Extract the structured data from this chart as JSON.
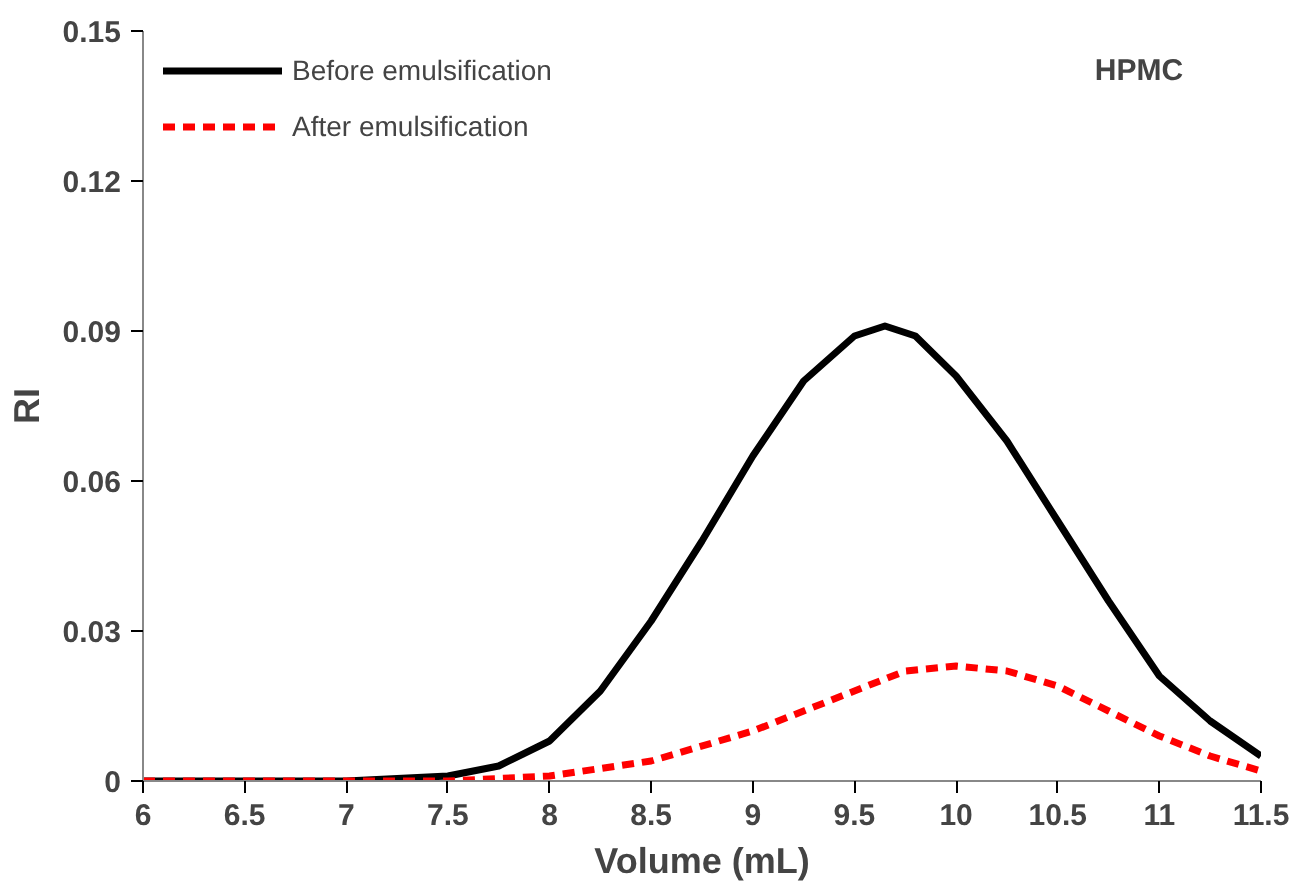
{
  "chart_data": {
    "type": "line",
    "xlabel": "Volume (mL)",
    "ylabel": "RI",
    "annotations": [
      "HPMC"
    ],
    "xlim": [
      6,
      11.5
    ],
    "ylim": [
      0,
      0.15
    ],
    "xticks": [
      6,
      6.5,
      7,
      7.5,
      8,
      8.5,
      9,
      9.5,
      10,
      10.5,
      11,
      11.5
    ],
    "yticks": [
      0,
      0.03,
      0.06,
      0.09,
      0.12,
      0.15
    ],
    "grid": false,
    "legend": "top left",
    "series": [
      {
        "name": "Before emulsification",
        "color": "#000000",
        "line_style": "solid",
        "x": [
          6,
          6.5,
          7,
          7.5,
          7.75,
          8,
          8.25,
          8.5,
          8.75,
          9,
          9.25,
          9.5,
          9.65,
          9.8,
          10,
          10.25,
          10.5,
          10.75,
          11,
          11.25,
          11.5
        ],
        "values": [
          0,
          0,
          0,
          0.001,
          0.003,
          0.008,
          0.018,
          0.032,
          0.048,
          0.065,
          0.08,
          0.089,
          0.091,
          0.089,
          0.081,
          0.068,
          0.052,
          0.036,
          0.021,
          0.012,
          0.005
        ]
      },
      {
        "name": "After emulsification",
        "color": "#ff0000",
        "line_style": "dashed",
        "x": [
          6,
          7,
          7.5,
          8,
          8.5,
          9,
          9.25,
          9.5,
          9.75,
          10,
          10.25,
          10.5,
          10.75,
          11,
          11.25,
          11.5
        ],
        "values": [
          0,
          0,
          0,
          0.001,
          0.004,
          0.01,
          0.014,
          0.018,
          0.022,
          0.023,
          0.022,
          0.019,
          0.014,
          0.009,
          0.005,
          0.002
        ]
      }
    ]
  }
}
